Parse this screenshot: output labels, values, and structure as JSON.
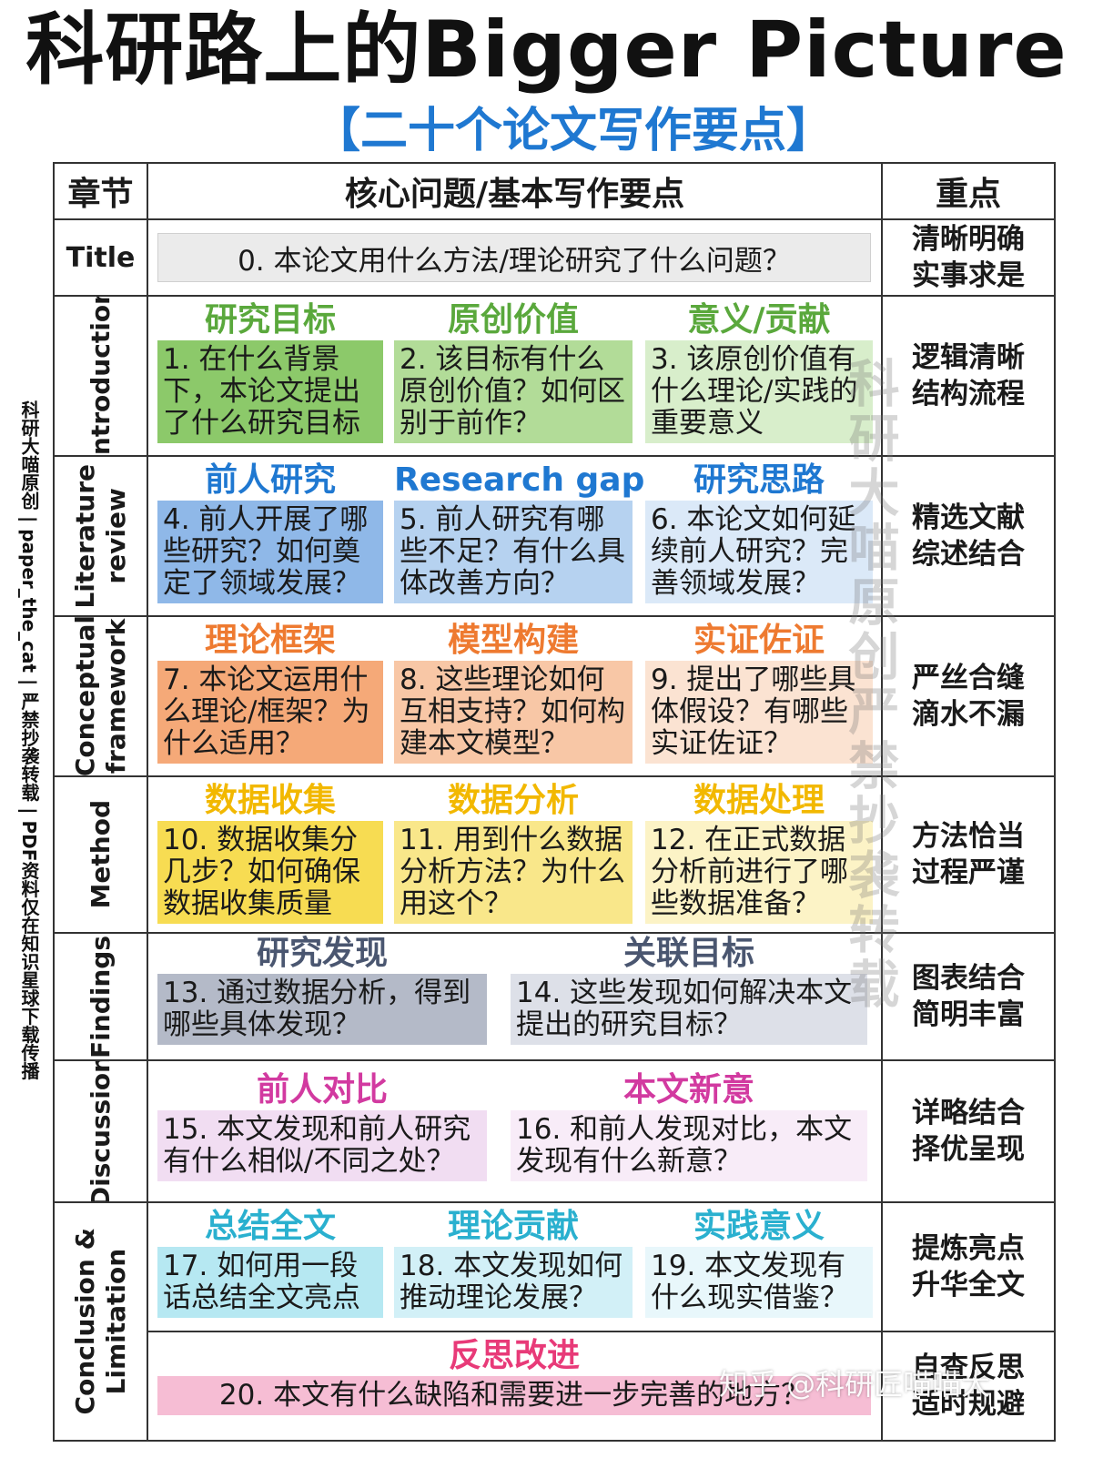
{
  "title": "科研路上的Bigger Picture",
  "subtitle": "【二十个论文写作要点】",
  "side_note": "科研大喵原创 | paper_the_cat | 严禁抄袭转载 | PDF资料仅在知识星球下载传播",
  "watermark_vertical": "科研大喵原创严禁抄袭转载",
  "watermark_corner": "知乎 @科研匠喵喵大",
  "header": {
    "chapter": "章节",
    "core": "核心问题/基本写作要点",
    "key": "重点"
  },
  "colors": {
    "green": "#8cc96a",
    "green_title": "#5aa83c",
    "blue": "#8fb8e8",
    "blue_title": "#1f78d1",
    "orange": "#f5a978",
    "orange_title": "#ee7a30",
    "yellow": "#f7dc52",
    "yellow_title": "#f2b800",
    "slate": "#b4bac8",
    "slate_title": "#4a5670",
    "lilac": "#f1ddf2",
    "pink_title": "#d23aa0",
    "cyan": "#b6e8f2",
    "cyan_title": "#2ab0cf",
    "rose": "#f6bdd4",
    "rose_title": "#e83a78"
  },
  "rows": {
    "title": {
      "chapter": "Title",
      "text": "0. 本论文用什么方法/理论研究了什么问题？",
      "key": "清晰明确\n实事求是"
    },
    "introduction": {
      "chapter": "Introduction",
      "items": [
        {
          "sub": "研究目标",
          "text": "1. 在什么背景下，本论文提出了什么研究目标"
        },
        {
          "sub": "原创价值",
          "text": "2. 该目标有什么原创价值？如何区别于前作？"
        },
        {
          "sub": "意义/贡献",
          "text": "3. 该原创价值有什么理论/实践的重要意义"
        }
      ],
      "key": "逻辑清晰\n结构流程"
    },
    "literature": {
      "chapter": "Literature\nreview",
      "items": [
        {
          "sub": "前人研究",
          "text": "4. 前人开展了哪些研究？如何奠定了领域发展？"
        },
        {
          "sub": "Research gap",
          "text": "5. 前人研究有哪些不足？有什么具体改善方向？"
        },
        {
          "sub": "研究思路",
          "text": "6. 本论文如何延续前人研究？完善领域发展？"
        }
      ],
      "key": "精选文献\n综述结合"
    },
    "conceptual": {
      "chapter": "Conceptual\nframework",
      "items": [
        {
          "sub": "理论框架",
          "text": "7. 本论文运用什么理论/框架？为什么适用？"
        },
        {
          "sub": "模型构建",
          "text": "8. 这些理论如何互相支持？如何构建本文模型？"
        },
        {
          "sub": "实证佐证",
          "text": "9. 提出了哪些具体假设？有哪些实证佐证？"
        }
      ],
      "key": "严丝合缝\n滴水不漏"
    },
    "method": {
      "chapter": "Method",
      "items": [
        {
          "sub": "数据收集",
          "text": "10. 数据收集分几步？如何确保数据收集质量"
        },
        {
          "sub": "数据分析",
          "text": "11. 用到什么数据分析方法？为什么用这个？"
        },
        {
          "sub": "数据处理",
          "text": "12. 在正式数据分析前进行了哪些数据准备？"
        }
      ],
      "key": "方法恰当\n过程严谨"
    },
    "findings": {
      "chapter": "Findings",
      "items": [
        {
          "sub": "研究发现",
          "text": "13. 通过数据分析，得到哪些具体发现？"
        },
        {
          "sub": "关联目标",
          "text": "14. 这些发现如何解决本文提出的研究目标？"
        }
      ],
      "key": "图表结合\n简明丰富"
    },
    "discussion": {
      "chapter": "Discussion",
      "items": [
        {
          "sub": "前人对比",
          "text": "15. 本文发现和前人研究有什么相似/不同之处？"
        },
        {
          "sub": "本文新意",
          "text": "16. 和前人发现对比，本文发现有什么新意？"
        }
      ],
      "key": "详略结合\n择优呈现"
    },
    "conclusion": {
      "chapter": "Conclusion &\nLimitation",
      "items": [
        {
          "sub": "总结全文",
          "text": "17. 如何用一段话总结全文亮点"
        },
        {
          "sub": "理论贡献",
          "text": "18. 本文发现如何推动理论发展？"
        },
        {
          "sub": "实践意义",
          "text": "19. 本文发现有什么现实借鉴？"
        }
      ],
      "key": "提炼亮点\n升华全文"
    },
    "reflection": {
      "sub": "反思改进",
      "text": "20. 本文有什么缺陷和需要进一步完善的地方？",
      "key": "自查反思\n适时规避"
    }
  }
}
